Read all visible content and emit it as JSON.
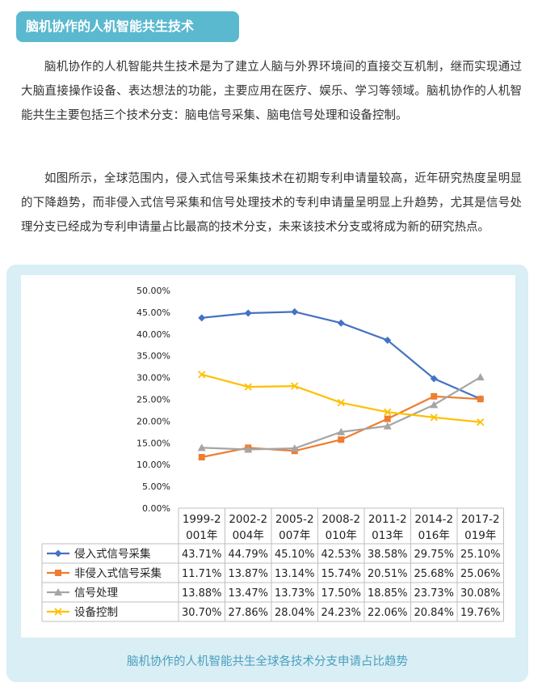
{
  "header": {
    "title": "脑机协作的人机智能共生技术"
  },
  "paragraphs": [
    "脑机协作的人机智能共生技术是为了建立人脑与外界环境间的直接交互机制，继而实现通过大脑直接操作设备、表达想法的功能，主要应用在医疗、娱乐、学习等领域。脑机协作的人机智能共生主要包括三个技术分支：脑电信号采集、脑电信号处理和设备控制。",
    "如图所示，全球范围内，侵入式信号采集技术在初期专利申请量较高，近年研究热度呈明显的下降趋势，而非侵入式信号采集和信号处理技术的专利申请量呈明显上升趋势，尤其是信号处理分支已经成为专利申请量占比最高的技术分支，未来该技术分支或将成为新的研究热点。"
  ],
  "caption": "脑机协作的人机智能共生全球各技术分支申请占比趋势",
  "chart_data": {
    "type": "line",
    "categories": [
      [
        "1999-2",
        "001年"
      ],
      [
        "2002-2",
        "004年"
      ],
      [
        "2005-2",
        "007年"
      ],
      [
        "2008-2",
        "010年"
      ],
      [
        "2011-2",
        "013年"
      ],
      [
        "2014-2",
        "016年"
      ],
      [
        "2017-2",
        "019年"
      ]
    ],
    "y_ticks": [
      "0.00%",
      "5.00%",
      "10.00%",
      "15.00%",
      "20.00%",
      "25.00%",
      "30.00%",
      "35.00%",
      "40.00%",
      "45.00%",
      "50.00%"
    ],
    "ylim": [
      0,
      50
    ],
    "legend_placement": "bottom-table",
    "series": [
      {
        "name": "侵入式信号采集",
        "marker": "diamond",
        "color": "#4472c4",
        "values": [
          43.71,
          44.79,
          45.1,
          42.53,
          38.58,
          29.75,
          25.1
        ],
        "labels": [
          "43.71%",
          "44.79%",
          "45.10%",
          "42.53%",
          "38.58%",
          "29.75%",
          "25.10%"
        ]
      },
      {
        "name": "非侵入式信号采集",
        "marker": "square",
        "color": "#ed7d31",
        "values": [
          11.71,
          13.87,
          13.14,
          15.74,
          20.51,
          25.68,
          25.06
        ],
        "labels": [
          "11.71%",
          "13.87%",
          "13.14%",
          "15.74%",
          "20.51%",
          "25.68%",
          "25.06%"
        ]
      },
      {
        "name": "信号处理",
        "marker": "triangle",
        "color": "#a5a5a5",
        "values": [
          13.88,
          13.47,
          13.73,
          17.5,
          18.85,
          23.73,
          30.08
        ],
        "labels": [
          "13.88%",
          "13.47%",
          "13.73%",
          "17.50%",
          "18.85%",
          "23.73%",
          "30.08%"
        ]
      },
      {
        "name": "设备控制",
        "marker": "x",
        "color": "#ffc000",
        "values": [
          30.7,
          27.86,
          28.04,
          24.23,
          22.06,
          20.84,
          19.76
        ],
        "labels": [
          "30.70%",
          "27.86%",
          "28.04%",
          "24.23%",
          "22.06%",
          "20.84%",
          "19.76%"
        ]
      }
    ]
  }
}
